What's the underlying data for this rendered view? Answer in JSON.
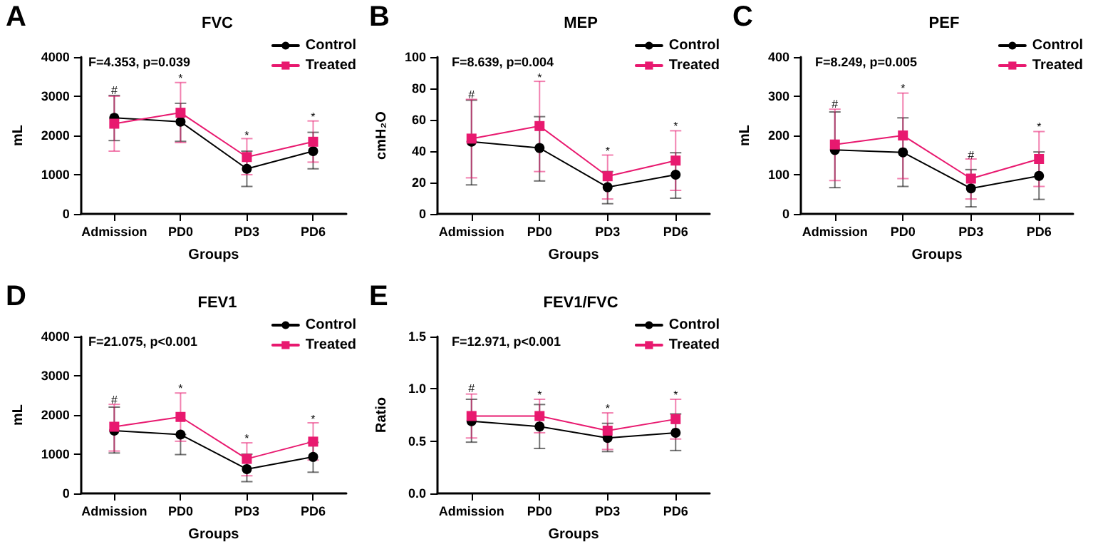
{
  "chart_data": [
    {
      "type": "line",
      "title": "FVC",
      "xlabel": "Groups",
      "ylabel": "mL",
      "categories": [
        "Admission",
        "PD0",
        "PD3",
        "PD6"
      ],
      "ylim": [
        0,
        4000
      ],
      "yticks": [
        0,
        1000,
        2000,
        3000,
        4000
      ],
      "grid": false,
      "legend": "top right",
      "series": [
        {
          "name": "Control",
          "color": "#000000",
          "marker": "circle",
          "values": [
            2450,
            2350,
            1150,
            1600
          ],
          "errors": [
            [
              1870,
              3020
            ],
            [
              1850,
              2820
            ],
            [
              700,
              1600
            ],
            [
              1150,
              2080
            ]
          ]
        },
        {
          "name": "Treated",
          "color": "#e8196f",
          "marker": "square",
          "values": [
            2300,
            2580,
            1450,
            1840
          ],
          "errors": [
            [
              1600,
              3000
            ],
            [
              1820,
              3350
            ],
            [
              1000,
              1920
            ],
            [
              1320,
              2370
            ]
          ]
        }
      ],
      "annotations": [
        "A",
        "F=4.353, p=0.039",
        {
          "text": "#",
          "x": "Admission",
          "y": 3150
        },
        {
          "text": "*",
          "x": "PD0",
          "y": 3450
        },
        {
          "text": "*",
          "x": "PD3",
          "y": 2000
        },
        {
          "text": "*",
          "x": "PD6",
          "y": 2480
        }
      ]
    },
    {
      "type": "line",
      "title": "MEP",
      "xlabel": "Groups",
      "ylabel": "cmH₂O",
      "categories": [
        "Admission",
        "PD0",
        "PD3",
        "PD6"
      ],
      "ylim": [
        0,
        100
      ],
      "yticks": [
        0,
        20,
        40,
        60,
        80,
        100
      ],
      "grid": false,
      "legend": "top right",
      "series": [
        {
          "name": "Control",
          "color": "#000000",
          "marker": "circle",
          "values": [
            46,
            42,
            17,
            25
          ],
          "errors": [
            [
              18.5,
              72.5
            ],
            [
              21,
              62
            ],
            [
              6.5,
              27
            ],
            [
              10,
              39
            ]
          ]
        },
        {
          "name": "Treated",
          "color": "#e8196f",
          "marker": "square",
          "values": [
            48,
            56,
            24,
            34
          ],
          "errors": [
            [
              23,
              73
            ],
            [
              27,
              84.5
            ],
            [
              9.5,
              37.5
            ],
            [
              15,
              53
            ]
          ]
        }
      ],
      "annotations": [
        "B",
        "F=8.639, p=0.004",
        {
          "text": "#",
          "x": "Admission",
          "y": 76
        },
        {
          "text": "*",
          "x": "PD0",
          "y": 87
        },
        {
          "text": "*",
          "x": "PD3",
          "y": 40
        },
        {
          "text": "*",
          "x": "PD6",
          "y": 56
        }
      ]
    },
    {
      "type": "line",
      "title": "PEF",
      "xlabel": "Groups",
      "ylabel": "mL",
      "categories": [
        "Admission",
        "PD0",
        "PD3",
        "PD6"
      ],
      "ylim": [
        0,
        400
      ],
      "yticks": [
        0,
        100,
        200,
        300,
        400
      ],
      "grid": false,
      "legend": "top right",
      "series": [
        {
          "name": "Control",
          "color": "#000000",
          "marker": "circle",
          "values": [
            163,
            157,
            65,
            97
          ],
          "errors": [
            [
              67,
              260
            ],
            [
              70,
              245
            ],
            [
              18,
              113
            ],
            [
              37,
              158
            ]
          ]
        },
        {
          "name": "Treated",
          "color": "#e8196f",
          "marker": "square",
          "values": [
            177,
            200,
            90,
            140
          ],
          "errors": [
            [
              85,
              267
            ],
            [
              90,
              308
            ],
            [
              38,
              140
            ],
            [
              70,
              210
            ]
          ]
        }
      ],
      "annotations": [
        "C",
        "F=8.249, p=0.005",
        {
          "text": "#",
          "x": "Admission",
          "y": 280
        },
        {
          "text": "*",
          "x": "PD0",
          "y": 320
        },
        {
          "text": "#",
          "x": "PD3",
          "y": 150
        },
        {
          "text": "*",
          "x": "PD6",
          "y": 222
        }
      ]
    },
    {
      "type": "line",
      "title": "FEV1",
      "xlabel": "Groups",
      "ylabel": "mL",
      "categories": [
        "Admission",
        "PD0",
        "PD3",
        "PD6"
      ],
      "ylim": [
        0,
        4000
      ],
      "yticks": [
        0,
        1000,
        2000,
        3000,
        4000
      ],
      "grid": false,
      "legend": "top right",
      "series": [
        {
          "name": "Control",
          "color": "#000000",
          "marker": "circle",
          "values": [
            1600,
            1500,
            620,
            930
          ],
          "errors": [
            [
              1030,
              2200
            ],
            [
              990,
              1500
            ],
            [
              300,
              1000
            ],
            [
              540,
              1300
            ]
          ]
        },
        {
          "name": "Treated",
          "color": "#e8196f",
          "marker": "square",
          "values": [
            1700,
            1950,
            880,
            1320
          ],
          "errors": [
            [
              1080,
              2270
            ],
            [
              1330,
              2560
            ],
            [
              450,
              1290
            ],
            [
              850,
              1800
            ]
          ]
        }
      ],
      "annotations": [
        "D",
        "F=21.075, p<0.001",
        {
          "text": "#",
          "x": "Admission",
          "y": 2380
        },
        {
          "text": "*",
          "x": "PD0",
          "y": 2680
        },
        {
          "text": "*",
          "x": "PD3",
          "y": 1400
        },
        {
          "text": "*",
          "x": "PD6",
          "y": 1900
        }
      ]
    },
    {
      "type": "line",
      "title": "FEV1/FVC",
      "xlabel": "Groups",
      "ylabel": "Ratio",
      "categories": [
        "Admission",
        "PD0",
        "PD3",
        "PD6"
      ],
      "ylim": [
        0,
        1.5
      ],
      "yticks": [
        {
          "value": 0,
          "label": "0.0"
        },
        0.5,
        {
          "value": 1,
          "label": "1.0"
        },
        1.5
      ],
      "grid": false,
      "legend": "top right",
      "series": [
        {
          "name": "Control",
          "color": "#000000",
          "marker": "circle",
          "values": [
            0.69,
            0.64,
            0.53,
            0.58
          ],
          "errors": [
            [
              0.49,
              0.9
            ],
            [
              0.43,
              0.85
            ],
            [
              0.4,
              0.67
            ],
            [
              0.41,
              0.76
            ]
          ]
        },
        {
          "name": "Treated",
          "color": "#e8196f",
          "marker": "square",
          "values": [
            0.74,
            0.74,
            0.6,
            0.71
          ],
          "errors": [
            [
              0.53,
              0.95
            ],
            [
              0.58,
              0.9
            ],
            [
              0.42,
              0.77
            ],
            [
              0.52,
              0.9
            ]
          ]
        }
      ],
      "annotations": [
        "E",
        "F=12.971, p<0.001",
        {
          "text": "#",
          "x": "Admission",
          "y": 1.0
        },
        {
          "text": "*",
          "x": "PD0",
          "y": 0.94
        },
        {
          "text": "*",
          "x": "PD3",
          "y": 0.81
        },
        {
          "text": "*",
          "x": "PD6",
          "y": 0.94
        }
      ]
    }
  ]
}
